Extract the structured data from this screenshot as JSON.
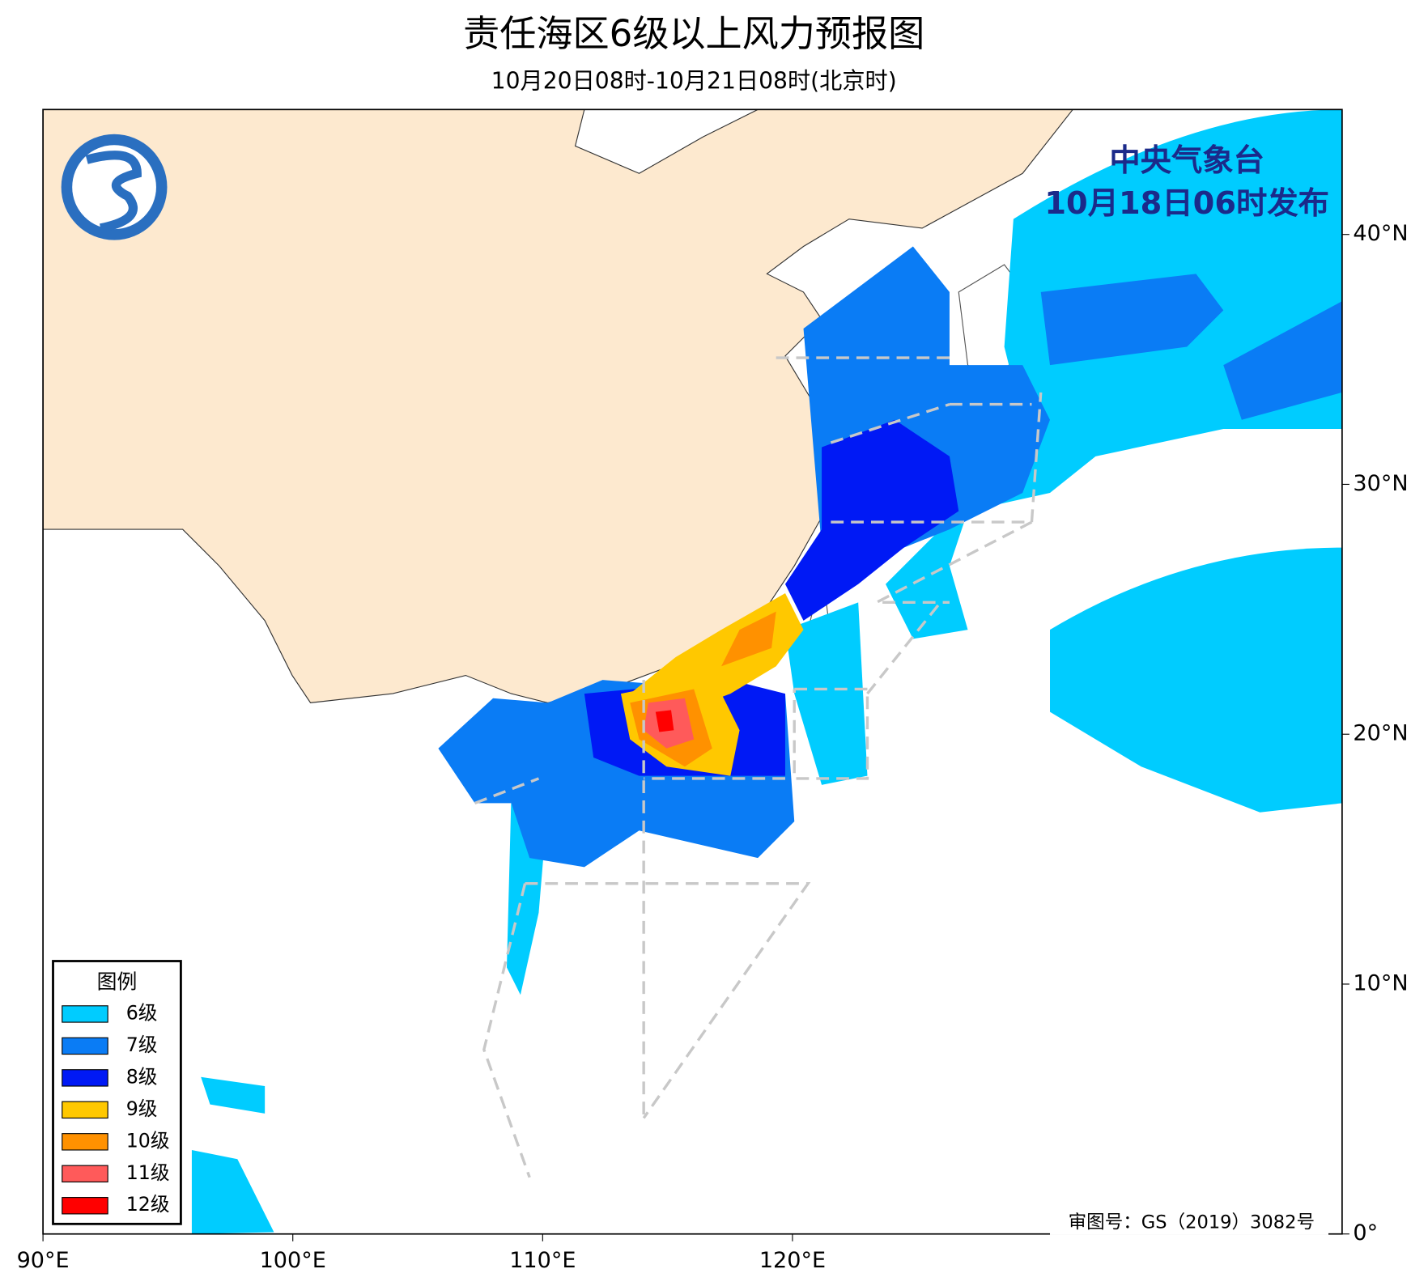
{
  "header": {
    "title": "责任海区6级以上风力预报图",
    "subtitle": "10月20日08时-10月21日08时(北京时)"
  },
  "issuer": {
    "line1": "中央气象台",
    "line2": "10月18日06时发布"
  },
  "legend": {
    "title": "图例",
    "items": [
      {
        "label": "6级",
        "color": "#00ccff"
      },
      {
        "label": "7级",
        "color": "#0a7cf5"
      },
      {
        "label": "8级",
        "color": "#0019f5"
      },
      {
        "label": "9级",
        "color": "#ffc800"
      },
      {
        "label": "10级",
        "color": "#ff9100"
      },
      {
        "label": "11级",
        "color": "#ff5a5a"
      },
      {
        "label": "12级",
        "color": "#ff0000"
      }
    ]
  },
  "lon_ticks": [
    {
      "value": 90,
      "label": "90°E"
    },
    {
      "value": 100,
      "label": "100°E"
    },
    {
      "value": 110,
      "label": "110°E"
    },
    {
      "value": 120,
      "label": "120°E"
    }
  ],
  "lat_ticks": [
    {
      "value": 0,
      "label": "0°"
    },
    {
      "value": 10,
      "label": "10°N"
    },
    {
      "value": 20,
      "label": "20°N"
    },
    {
      "value": 30,
      "label": "30°N"
    },
    {
      "value": 40,
      "label": "40°N"
    }
  ],
  "approval": "审图号：GS（2019）3082号"
}
